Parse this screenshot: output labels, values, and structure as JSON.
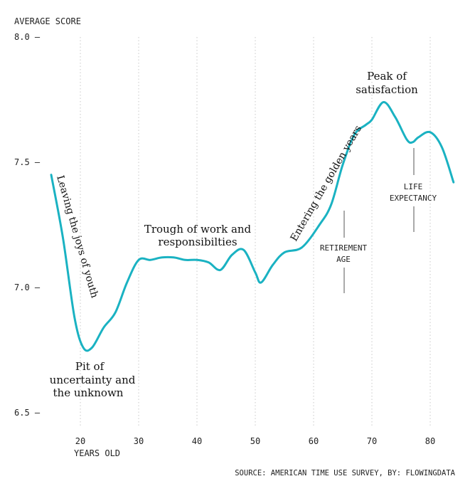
{
  "chart_data": {
    "type": "line",
    "ylabel": "AVERAGE SCORE",
    "xlabel": "YEARS OLD",
    "ylim": [
      6.5,
      8.0
    ],
    "xlim": [
      15,
      84
    ],
    "x_ticks": [
      20,
      30,
      40,
      50,
      60,
      70,
      80
    ],
    "y_ticks": [
      "8.0",
      "7.5",
      "7.0",
      "6.5"
    ],
    "grid": "vertical dotted",
    "line_color": "#1ab2c2",
    "series": [
      {
        "x": [
          15,
          17,
          19,
          20.5,
          22,
          24,
          26,
          28,
          30,
          32,
          34,
          36,
          38,
          40,
          42,
          44,
          46,
          48,
          50,
          51,
          53,
          55,
          58,
          61,
          63,
          65,
          67,
          69,
          70,
          72,
          74,
          76,
          77,
          78,
          80,
          82,
          84
        ],
        "y": [
          7.45,
          7.2,
          6.88,
          6.76,
          6.76,
          6.84,
          6.9,
          7.02,
          7.11,
          7.11,
          7.12,
          7.12,
          7.11,
          7.11,
          7.1,
          7.07,
          7.13,
          7.15,
          7.06,
          7.02,
          7.09,
          7.14,
          7.16,
          7.25,
          7.33,
          7.49,
          7.61,
          7.65,
          7.67,
          7.74,
          7.68,
          7.59,
          7.58,
          7.6,
          7.62,
          7.56,
          7.42
        ]
      }
    ],
    "annotations": {
      "youth": "Leaving the joys of youth",
      "pit_1": "Pit of",
      "pit_2": "uncertainty and",
      "pit_3": "the unknown",
      "trough_1": "Trough of work and",
      "trough_2": "responsibilties",
      "golden": "Entering the golden years",
      "peak_1": "Peak of",
      "peak_2": "satisfaction",
      "retirement_1": "RETIREMENT",
      "retirement_2": "AGE",
      "life_1": "LIFE",
      "life_2": "EXPECTANCY"
    },
    "source": "SOURCE: AMERICAN TIME USE SURVEY, BY: FLOWINGDATA"
  }
}
